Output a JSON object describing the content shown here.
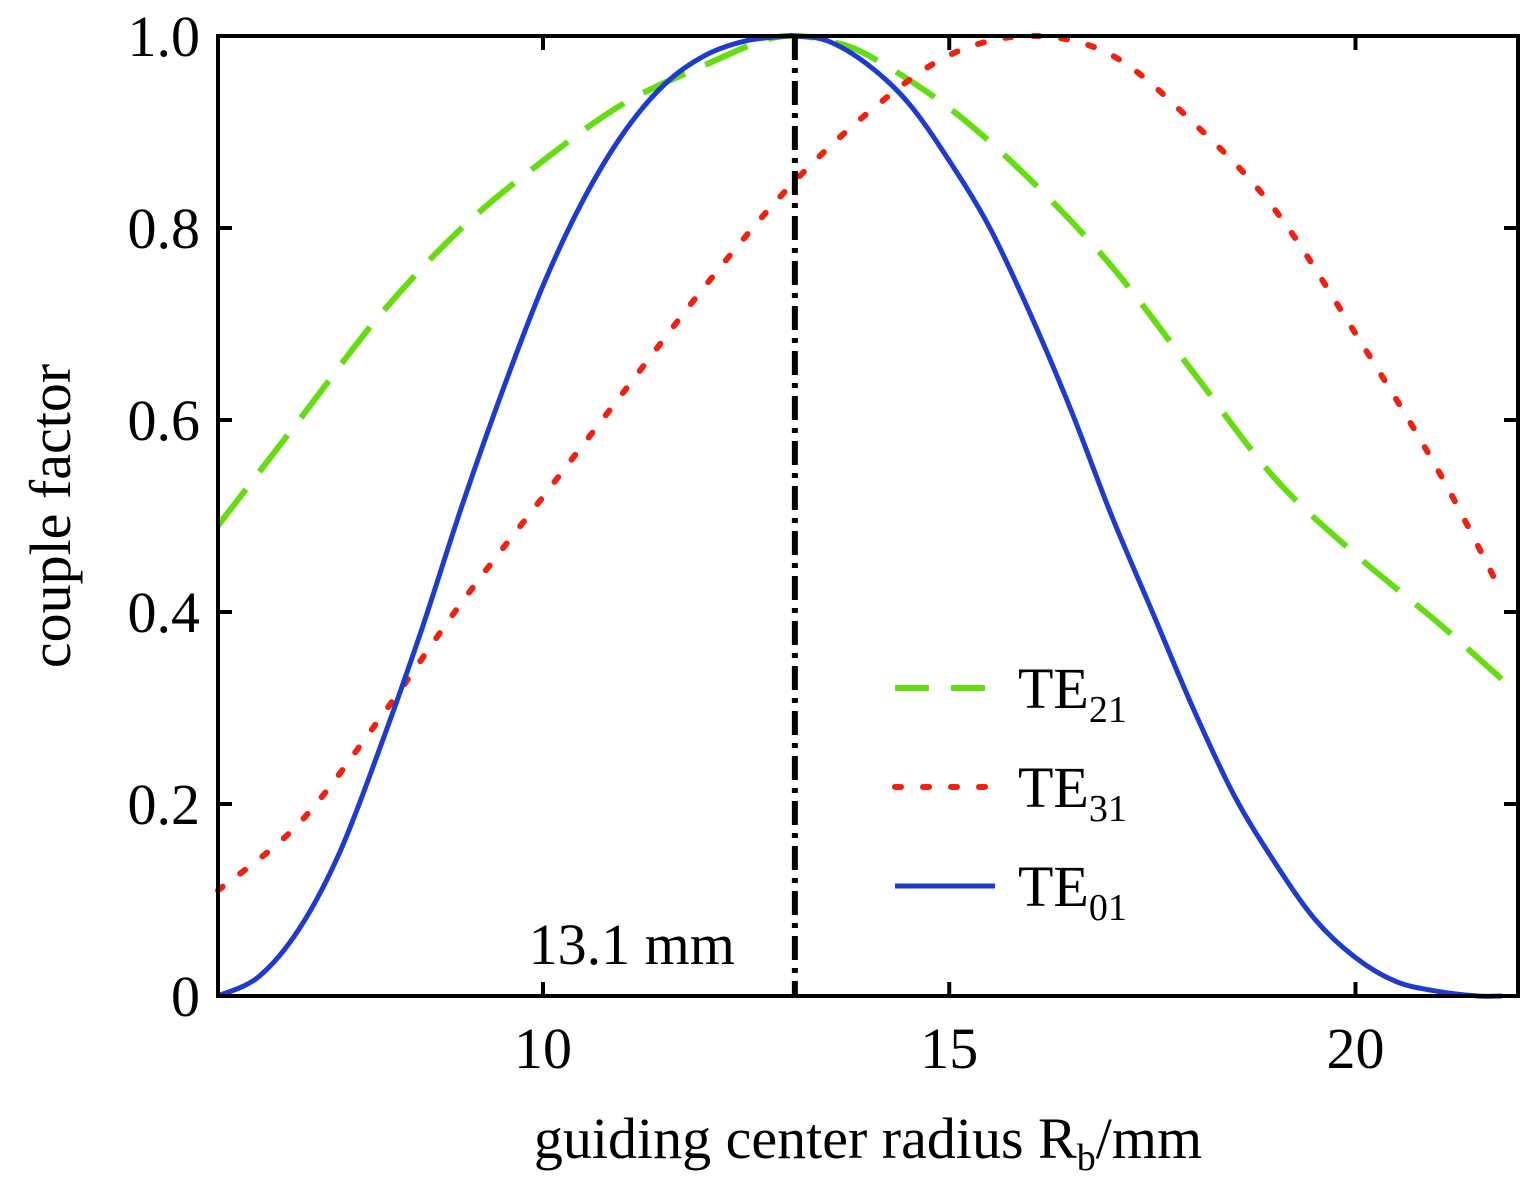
{
  "chart_data": {
    "type": "line",
    "xlabel": {
      "main": "guiding center radius R",
      "sub": "b",
      "unit": "/mm"
    },
    "ylabel": "couple factor",
    "xlim": [
      6,
      22
    ],
    "ylim": [
      0,
      1.0
    ],
    "xticks": [
      10,
      15,
      20
    ],
    "xtick_labels": [
      "10",
      "15",
      "20"
    ],
    "yticks": [
      0,
      0.2,
      0.4,
      0.6,
      0.8,
      1.0
    ],
    "ytick_labels": [
      "0",
      "0.2",
      "0.4",
      "0.6",
      "0.8",
      "1.0"
    ],
    "grid": false,
    "legend_position": "bottom-right",
    "series": [
      {
        "name": "TE21",
        "label_main": "TE",
        "label_sub": "21",
        "color": "#66dd11",
        "style": "dashed",
        "x": [
          6,
          7,
          8,
          9,
          10,
          11,
          12,
          12.7,
          13.1,
          13.5,
          14,
          15,
          16,
          17,
          18,
          19,
          20,
          21,
          21.8
        ],
        "values": [
          0.49,
          0.6,
          0.71,
          0.8,
          0.87,
          0.93,
          0.97,
          0.995,
          1.0,
          0.995,
          0.98,
          0.925,
          0.85,
          0.76,
          0.65,
          0.54,
          0.46,
          0.39,
          0.33
        ]
      },
      {
        "name": "TE31",
        "label_main": "TE",
        "label_sub": "31",
        "color": "#ee2211",
        "style": "dotted",
        "x": [
          6,
          7,
          8,
          9,
          10,
          11,
          12,
          13,
          14,
          15,
          16,
          17,
          18,
          19,
          20,
          21,
          21.8
        ],
        "values": [
          0.11,
          0.18,
          0.29,
          0.41,
          0.52,
          0.63,
          0.74,
          0.84,
          0.92,
          0.98,
          1.0,
          0.98,
          0.91,
          0.82,
          0.69,
          0.55,
          0.42
        ]
      },
      {
        "name": "TE01",
        "label_main": "TE",
        "label_sub": "01",
        "color": "#1e3ccc",
        "style": "solid",
        "x": [
          6,
          6.5,
          7,
          7.5,
          8,
          8.5,
          9,
          9.5,
          10,
          10.5,
          11,
          11.5,
          12,
          12.5,
          13,
          13.1,
          13.5,
          14,
          14.5,
          15,
          15.5,
          16,
          16.5,
          17,
          17.5,
          18,
          18.5,
          19,
          19.5,
          20,
          20.5,
          21,
          21.5,
          21.8
        ],
        "values": [
          0.0,
          0.02,
          0.07,
          0.15,
          0.26,
          0.38,
          0.51,
          0.63,
          0.74,
          0.83,
          0.9,
          0.95,
          0.98,
          0.995,
          1.0,
          1.0,
          0.995,
          0.97,
          0.93,
          0.87,
          0.8,
          0.71,
          0.61,
          0.5,
          0.4,
          0.3,
          0.21,
          0.14,
          0.08,
          0.04,
          0.015,
          0.005,
          0.0,
          0.0
        ]
      }
    ],
    "annotation": {
      "x": 13.1,
      "text": "13.1 mm",
      "line_style": "dash-dot",
      "color": "#000000"
    }
  }
}
